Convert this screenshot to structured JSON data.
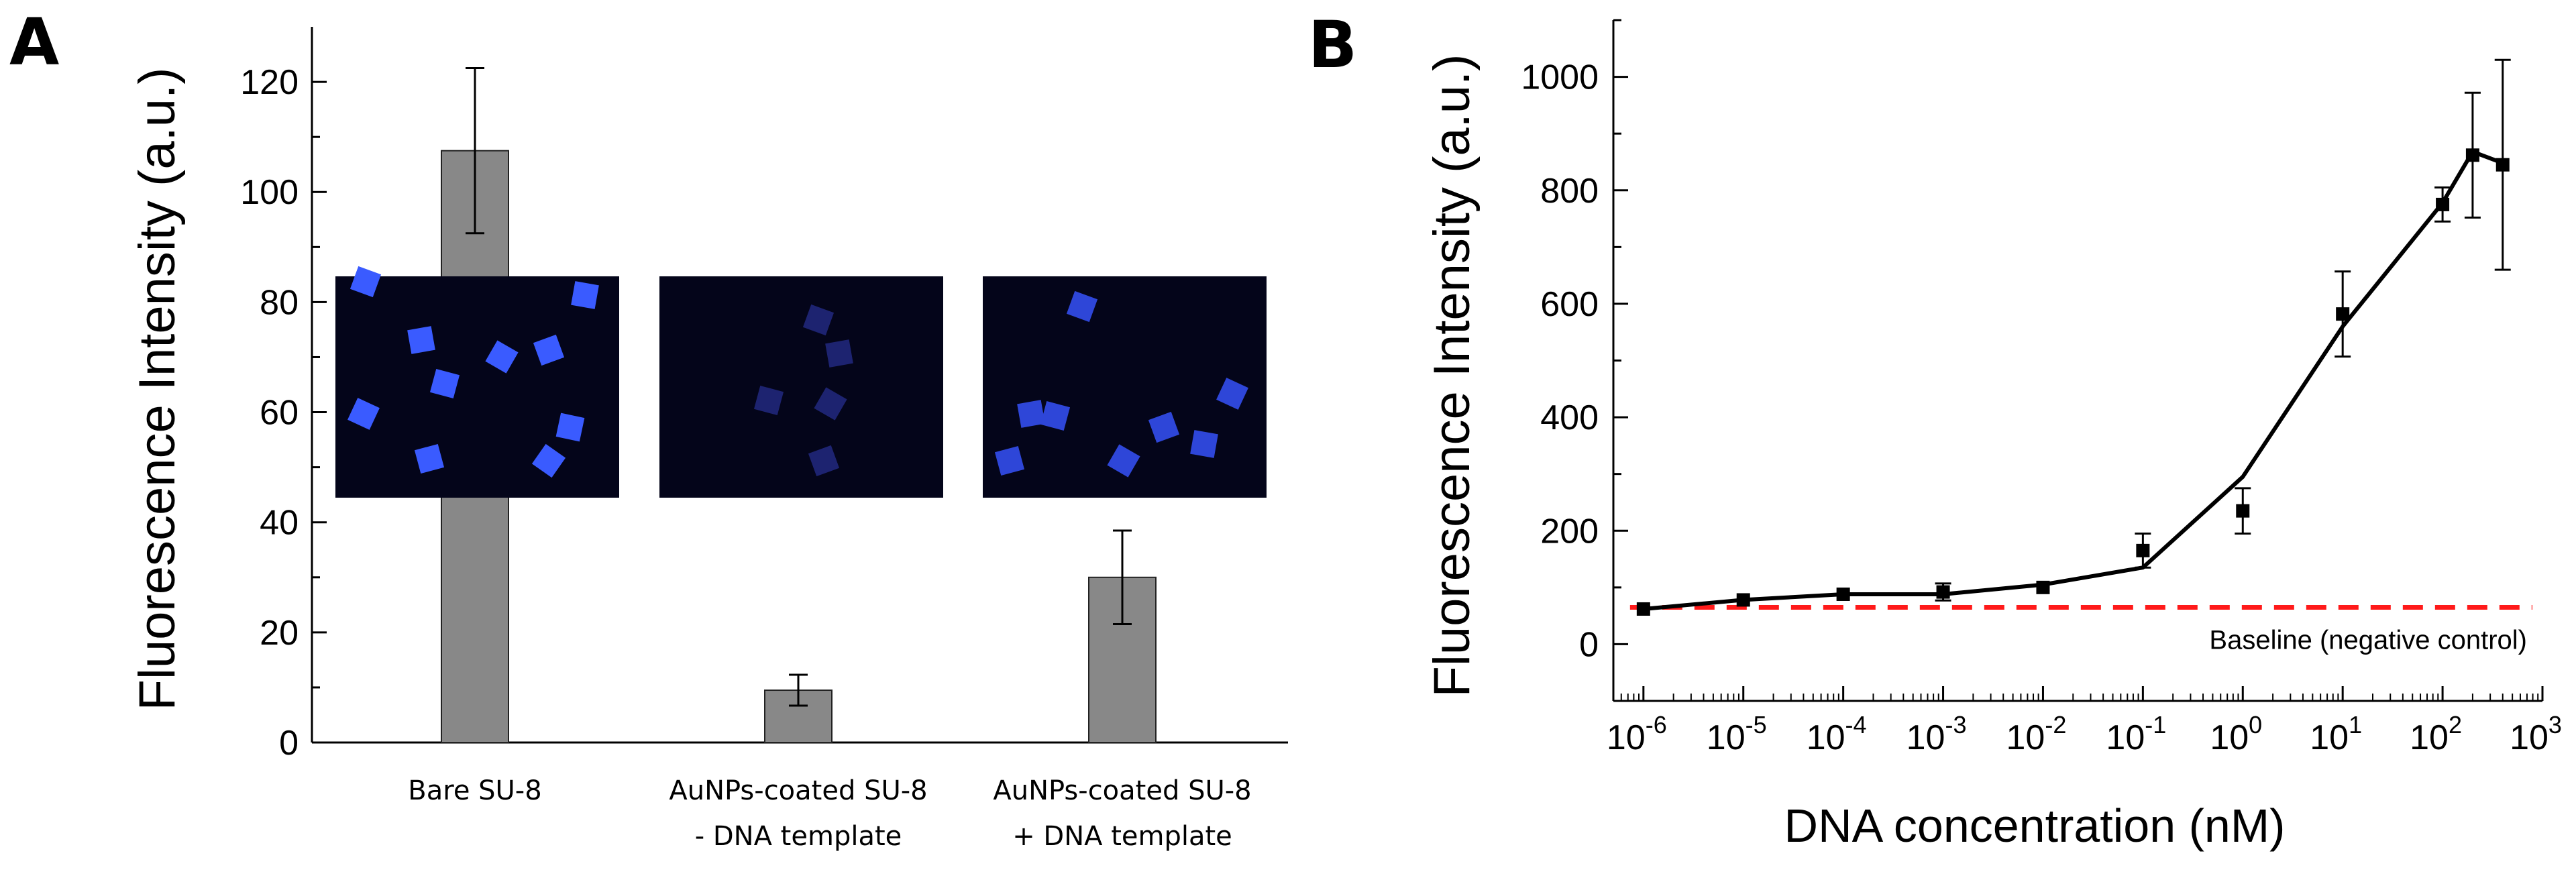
{
  "panels": {
    "a_label": "A",
    "b_label": "B"
  },
  "chart_data": [
    {
      "type": "bar",
      "panel": "A",
      "categories": [
        [
          "Bare SU-8"
        ],
        [
          "AuNPs-coated SU-8",
          "- DNA template"
        ],
        [
          "AuNPs-coated SU-8",
          "+ DNA template"
        ]
      ],
      "values": [
        107.5,
        9.5,
        30.0
      ],
      "errors": [
        15.0,
        2.8,
        8.5
      ],
      "bar_color": "#888888",
      "ylabel": "Fluorescence Intensity (a.u.)",
      "xlabel": "",
      "ylim": [
        0,
        130
      ],
      "yticks": [
        0,
        20,
        40,
        60,
        80,
        100,
        120
      ],
      "grid": false,
      "insets": [
        {
          "name": "fluorescence-image-bare",
          "brightness": "bright",
          "squares": 11
        },
        {
          "name": "fluorescence-image-minus-dna",
          "brightness": "dim",
          "squares": 5
        },
        {
          "name": "fluorescence-image-plus-dna",
          "brightness": "medium",
          "squares": 8
        }
      ],
      "inset_colors": {
        "background": "#04051a",
        "bright": "#3a5bff",
        "dim": "#1d2370",
        "medium": "#2e46d8"
      }
    },
    {
      "type": "line",
      "panel": "B",
      "x_scale": "log",
      "x": [
        1e-06,
        1e-05,
        0.0001,
        0.001,
        0.01,
        0.1,
        1,
        10,
        100,
        200,
        400
      ],
      "y": [
        62,
        78,
        88,
        92,
        100,
        165,
        235,
        582,
        775,
        862,
        845
      ],
      "errors": [
        0,
        0,
        0,
        15,
        0,
        30,
        40,
        75,
        30,
        110,
        185
      ],
      "fit_y": [
        62,
        78,
        88,
        88,
        105,
        135,
        295,
        560,
        778,
        868,
        848
      ],
      "fit_color": "#000000",
      "marker": "square",
      "baseline": {
        "value": 65,
        "label": "Baseline (negative control)",
        "color": "#ff1a1a",
        "style": "dashed"
      },
      "xlabel": "DNA concentration (nM)",
      "ylabel": "Fluorescence Intensity (a.u.)",
      "xlim": [
        5e-07,
        1000
      ],
      "ylim": [
        -100,
        1100
      ],
      "yticks": [
        0,
        200,
        400,
        600,
        800,
        1000
      ],
      "xticks": [
        {
          "value": 1e-06,
          "base": "10",
          "exp": "-6"
        },
        {
          "value": 1e-05,
          "base": "10",
          "exp": "-5"
        },
        {
          "value": 0.0001,
          "base": "10",
          "exp": "-4"
        },
        {
          "value": 0.001,
          "base": "10",
          "exp": "-3"
        },
        {
          "value": 0.01,
          "base": "10",
          "exp": "-2"
        },
        {
          "value": 0.1,
          "base": "10",
          "exp": "-1"
        },
        {
          "value": 1,
          "base": "10",
          "exp": "0"
        },
        {
          "value": 10,
          "base": "10",
          "exp": "1"
        },
        {
          "value": 100,
          "base": "10",
          "exp": "2"
        },
        {
          "value": 1000,
          "base": "10",
          "exp": "3"
        }
      ],
      "grid": false
    }
  ]
}
